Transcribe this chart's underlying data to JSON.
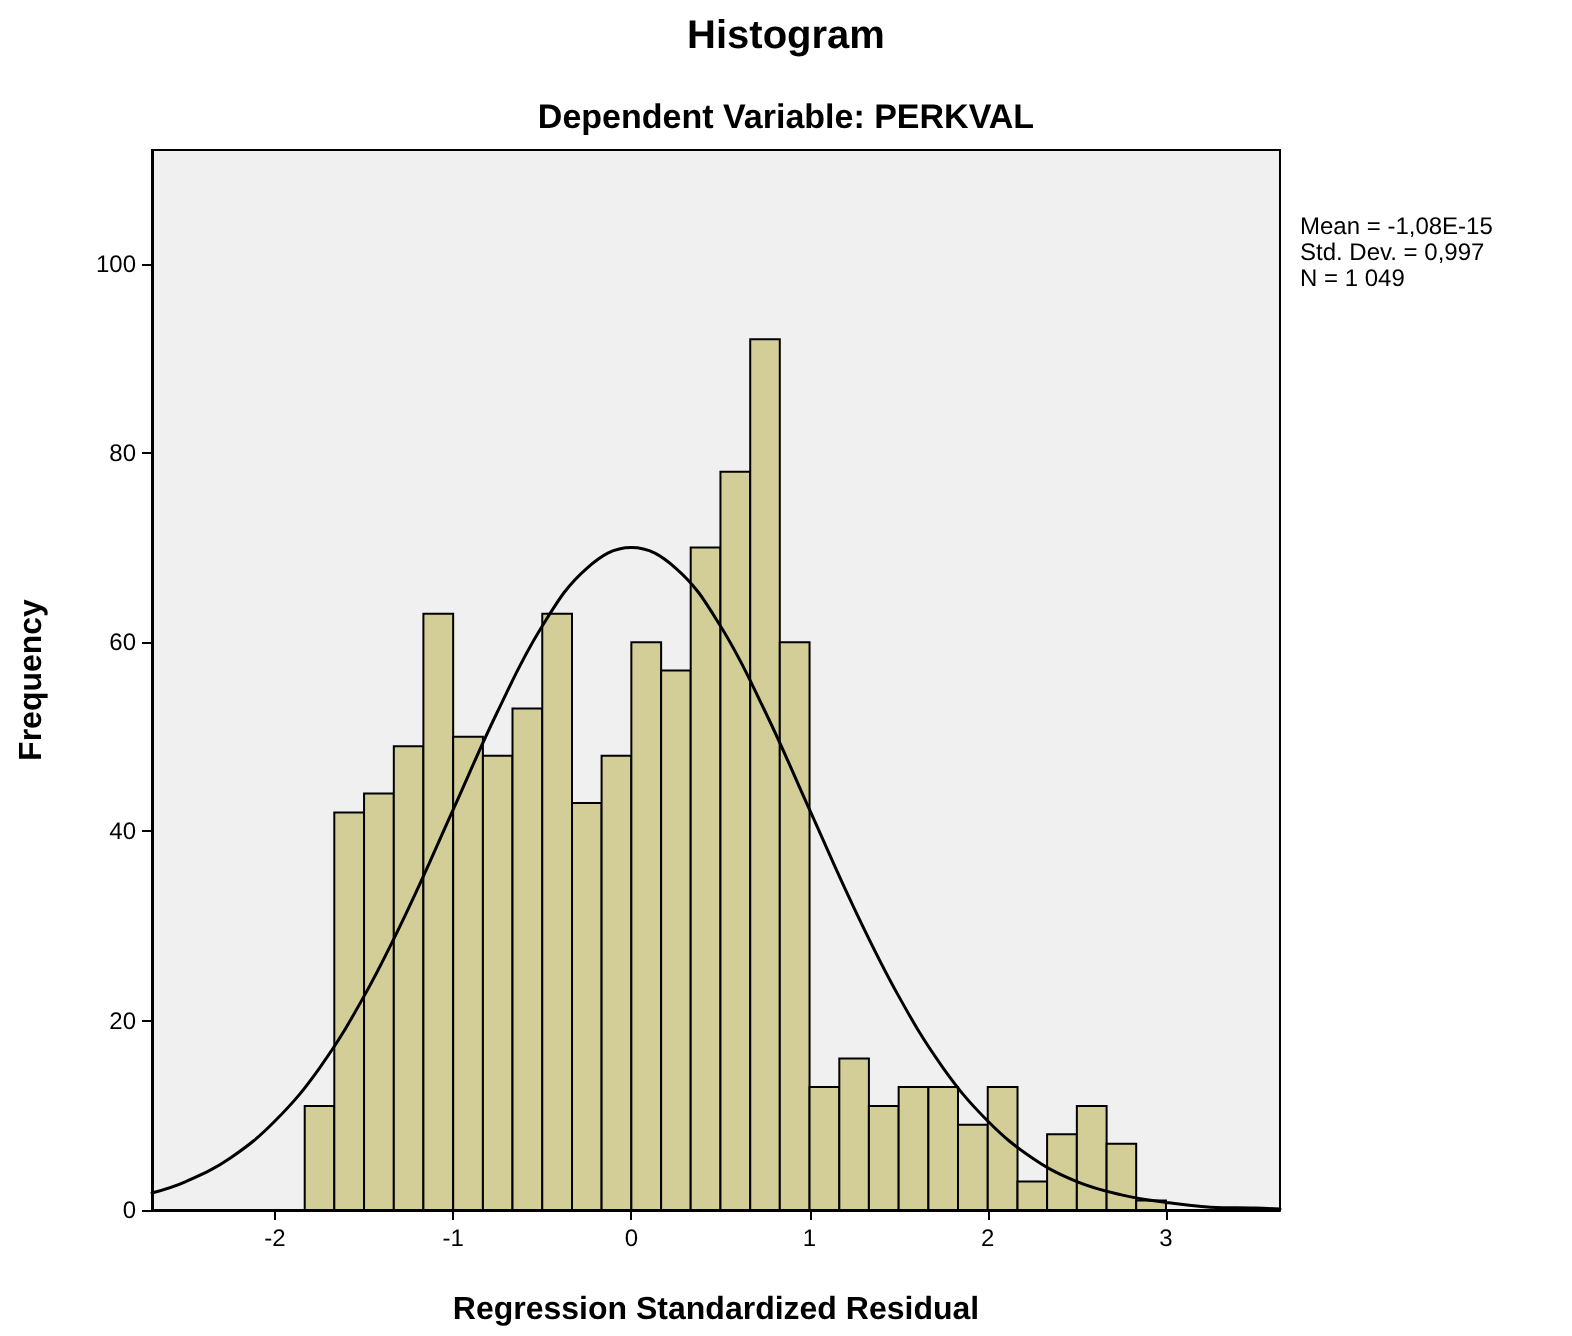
{
  "chart_data": {
    "type": "histogram",
    "title": "Histogram",
    "subtitle": "Dependent Variable: PERKVAL",
    "xlabel": "Regression Standardized Residual",
    "ylabel": "Frequency",
    "annotations": [
      "Mean = -1,08E-15",
      "Std. Dev. = 0,997",
      "N = 1 049"
    ],
    "series": [
      {
        "type": "histogram",
        "color": "#d3ce97",
        "bins": [
          -1.833,
          -1.667,
          -1.5,
          -1.333,
          -1.167,
          -1,
          -0.833,
          -0.667,
          -0.5,
          -0.333,
          -0.167,
          0,
          0.167,
          0.333,
          0.5,
          0.667,
          0.833,
          1,
          1.167,
          1.333,
          1.5,
          1.667,
          1.833,
          2,
          2.167,
          2.333,
          2.5,
          2.667,
          2.833,
          3
        ],
        "values": [
          11,
          42,
          44,
          49,
          63,
          50,
          48,
          53,
          63,
          43,
          48,
          60,
          57,
          70,
          78,
          92,
          60,
          13,
          16,
          11,
          13,
          13,
          9,
          13,
          3,
          8,
          11,
          7,
          1
        ]
      },
      {
        "type": "line",
        "color": "#000000",
        "x": [
          -2.69,
          -2.5,
          -2.25,
          -2,
          -1.75,
          -1.5,
          -1.25,
          -1,
          -0.75,
          -0.5,
          -0.25,
          0,
          0.25,
          0.5,
          0.75,
          1,
          1.25,
          1.5,
          1.75,
          2,
          2.25,
          2.5,
          2.75,
          3,
          3.25,
          3.5,
          3.64
        ],
        "values": [
          1.8,
          3,
          5.5,
          9.4,
          15,
          22.6,
          31.9,
          42.3,
          52.7,
          61.7,
          67.8,
          70,
          67.8,
          61.7,
          52.7,
          42.3,
          31.9,
          22.6,
          15,
          9.4,
          5.5,
          3,
          1.6,
          0.8,
          0.3,
          0.2,
          0.1
        ]
      }
    ],
    "xlim": [
      -2.69,
      3.64
    ],
    "ylim": [
      0,
      112
    ],
    "xticks": [
      -2,
      -1,
      0,
      1,
      2,
      3
    ],
    "yticks": [
      0,
      20,
      40,
      60,
      80,
      100
    ],
    "grid": false,
    "marker": "none",
    "line_style": "solid"
  }
}
